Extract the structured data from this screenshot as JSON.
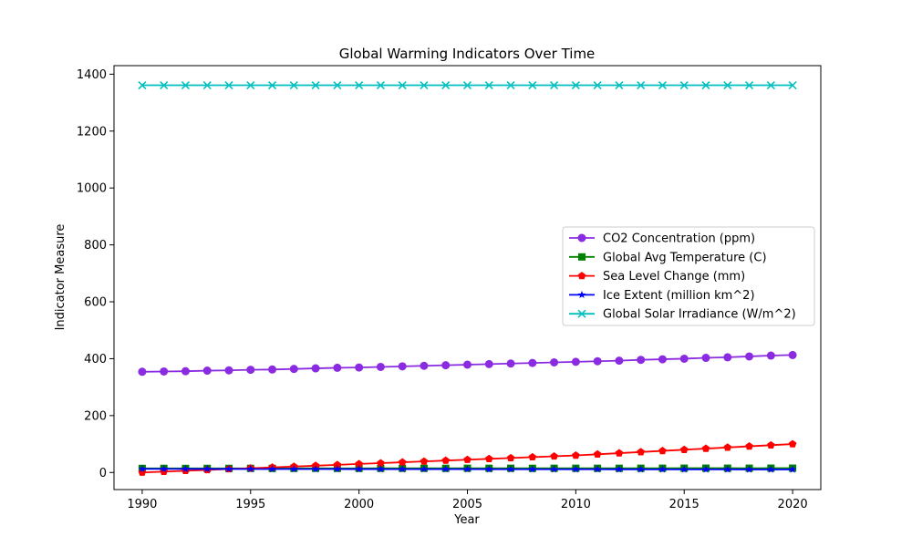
{
  "chart_data": {
    "type": "line",
    "title": "Global Warming Indicators Over Time",
    "xlabel": "Year",
    "ylabel": "Indicator Measure",
    "xlim": [
      1988.7,
      2021.3
    ],
    "ylim": [
      -60,
      1430
    ],
    "x_ticks": [
      1990,
      1995,
      2000,
      2005,
      2010,
      2015,
      2020
    ],
    "y_ticks": [
      0,
      200,
      400,
      600,
      800,
      1000,
      1200,
      1400
    ],
    "grid": false,
    "legend_position": "center-right",
    "x": [
      1990,
      1991,
      1992,
      1993,
      1994,
      1995,
      1996,
      1997,
      1998,
      1999,
      2000,
      2001,
      2002,
      2003,
      2004,
      2005,
      2006,
      2007,
      2008,
      2009,
      2010,
      2011,
      2012,
      2013,
      2014,
      2015,
      2016,
      2017,
      2018,
      2019,
      2020
    ],
    "series": [
      {
        "name": "CO2 Concentration (ppm)",
        "color": "#8a2be2",
        "marker": "circle",
        "values": [
          354,
          355,
          356,
          358,
          359,
          361,
          362,
          364,
          366,
          368,
          369,
          371,
          373,
          375,
          377,
          379,
          381,
          383,
          385,
          387,
          389,
          391,
          393,
          396,
          398,
          400,
          403,
          405,
          408,
          411,
          413
        ]
      },
      {
        "name": "Global Avg Temperature (C)",
        "color": "#008000",
        "marker": "square",
        "values": [
          14.4,
          14.5,
          14.3,
          14.4,
          14.5,
          14.6,
          14.5,
          14.6,
          14.8,
          14.6,
          14.6,
          14.7,
          14.8,
          14.8,
          14.7,
          14.9,
          14.8,
          14.9,
          14.7,
          14.8,
          14.9,
          14.8,
          14.8,
          14.9,
          15.0,
          15.1,
          15.2,
          15.1,
          15.0,
          15.2,
          15.2
        ]
      },
      {
        "name": "Sea Level Change (mm)",
        "color": "#ff0000",
        "marker": "pentagon",
        "values": [
          0,
          3,
          6,
          9,
          12,
          15,
          18,
          21,
          24,
          27,
          30,
          33,
          36,
          39,
          42,
          45,
          48,
          51,
          54,
          57,
          60,
          64,
          68,
          72,
          76,
          80,
          84,
          88,
          92,
          96,
          100
        ]
      },
      {
        "name": "Ice Extent (million km^2)",
        "color": "#0000ff",
        "marker": "star",
        "values": [
          12.5,
          12.4,
          12.4,
          12.3,
          12.3,
          12.2,
          12.1,
          12.1,
          12.0,
          12.0,
          11.9,
          11.8,
          11.8,
          11.7,
          11.6,
          11.6,
          11.5,
          11.4,
          11.4,
          11.3,
          11.2,
          11.2,
          11.1,
          11.0,
          11.0,
          10.9,
          10.8,
          10.8,
          10.7,
          10.6,
          10.6
        ]
      },
      {
        "name": "Global Solar Irradiance (W/m^2)",
        "color": "#00bfbf",
        "marker": "x",
        "values": [
          1361,
          1361,
          1361,
          1361,
          1361,
          1361,
          1361,
          1361,
          1361,
          1361,
          1361,
          1361,
          1361,
          1361,
          1361,
          1361,
          1361,
          1361,
          1361,
          1361,
          1361,
          1361,
          1361,
          1361,
          1361,
          1361,
          1361,
          1361,
          1361,
          1361,
          1361
        ]
      }
    ]
  }
}
